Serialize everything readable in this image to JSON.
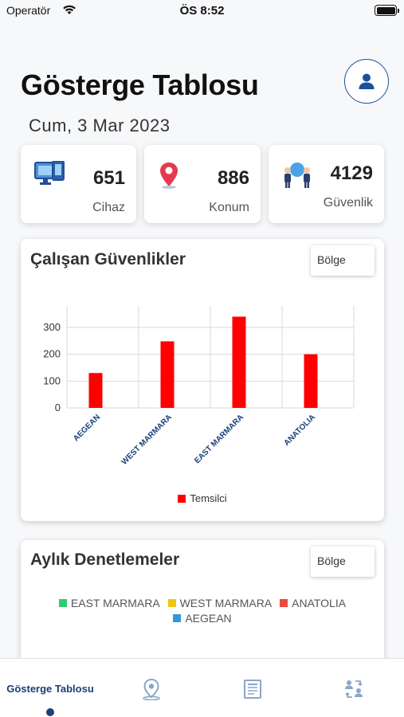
{
  "status_bar": {
    "carrier": "Operatör",
    "time": "ÖS 8:52"
  },
  "header": {
    "title": "Gösterge Tablosu",
    "date": "Cum, 3 Mar 2023"
  },
  "stats": [
    {
      "value": "651",
      "label": "Cihaz",
      "icon": "devices-icon"
    },
    {
      "value": "886",
      "label": "Konum",
      "icon": "location-pin-icon"
    },
    {
      "value": "4129",
      "label": "Güvenlik",
      "icon": "security-team-icon"
    }
  ],
  "employee_security": {
    "title": "Çalışan Güvenlikler",
    "region_button": "Bölge",
    "legend_label": "Temsilci"
  },
  "chart_data": {
    "type": "bar",
    "categories": [
      "AEGEAN",
      "WEST MARMARA",
      "EAST MARMARA",
      "ANATOLIA"
    ],
    "series": [
      {
        "name": "Temsilci",
        "values": [
          130,
          248,
          340,
          200
        ],
        "color": "#ff0000"
      }
    ],
    "ylim": [
      0,
      380
    ],
    "yticks": [
      0,
      100,
      200,
      300
    ],
    "grid": true,
    "legend_position": "bottom"
  },
  "monthly_inspections": {
    "title": "Aylık Denetlemeler",
    "region_button": "Bölge",
    "legend": [
      {
        "label": "EAST MARMARA",
        "color": "#2ecc71"
      },
      {
        "label": "WEST MARMARA",
        "color": "#f1c40f"
      },
      {
        "label": "ANATOLIA",
        "color": "#e74c3c"
      },
      {
        "label": "AEGEAN",
        "color": "#3498db"
      }
    ]
  },
  "tabbar": {
    "dashboard_label": "Gösterge Tablosu",
    "active": "dashboard",
    "accent": "#1a3f7a"
  }
}
